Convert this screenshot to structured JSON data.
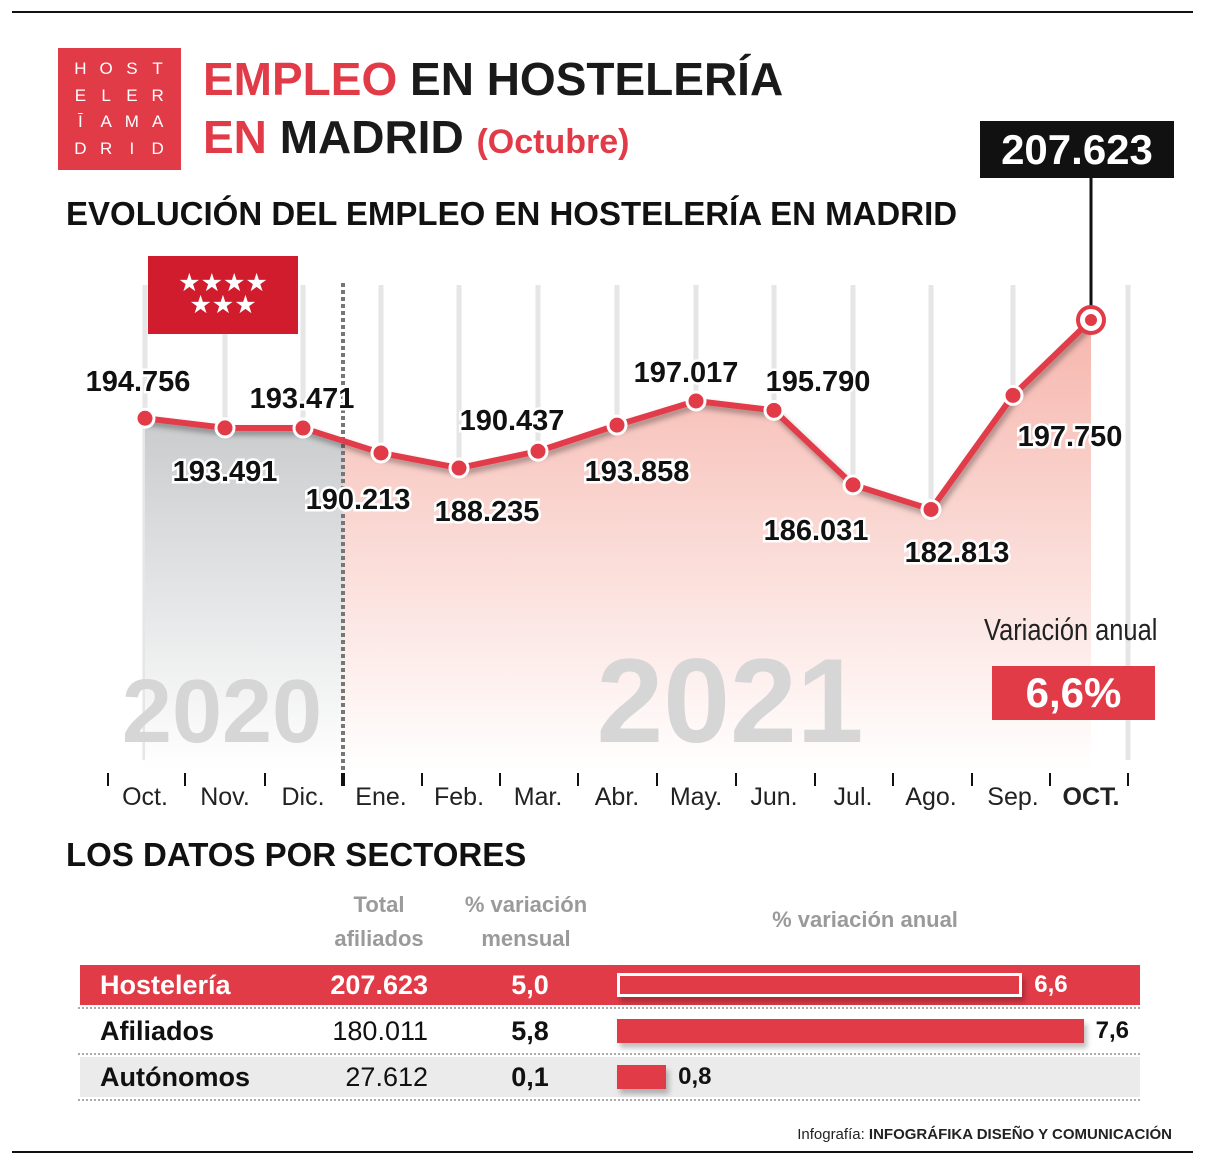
{
  "header": {
    "logo_letters": [
      "H",
      "O",
      "S",
      "T",
      "E",
      "L",
      "E",
      "R",
      "Ī",
      "A",
      "M",
      "A",
      "D",
      "R",
      "I",
      "D"
    ],
    "title_red": "EMPLEO",
    "title_rest": "EN HOSTELERÍA",
    "title_line2_red": "EN",
    "title_line2_rest": "MADRID",
    "title_paren": "(Octubre)"
  },
  "chart_data": {
    "type": "line",
    "title": "EVOLUCIÓN DEL EMPLEO EN HOSTELERÍA EN MADRID",
    "categories": [
      "Oct.",
      "Nov.",
      "Dic.",
      "Ene.",
      "Feb.",
      "Mar.",
      "Abr.",
      "May.",
      "Jun.",
      "Jul.",
      "Ago.",
      "Sep.",
      "OCT."
    ],
    "values": [
      194756,
      193491,
      193471,
      190213,
      188235,
      190437,
      193858,
      197017,
      195790,
      186031,
      182813,
      197750,
      207623
    ],
    "labels": [
      "194.756",
      "193.491",
      "193.471",
      "190.213",
      "188.235",
      "190.437",
      "193.858",
      "197.017",
      "195.790",
      "186.031",
      "182.813",
      "197.750",
      "207.623"
    ],
    "year_labels": [
      "2020",
      "2021"
    ],
    "ylim": [
      150000,
      212000
    ],
    "grid": "vertical",
    "colors": {
      "line": "#e23b48",
      "area_2021": "#f6b6ad",
      "area_2020": "#c9cbcd"
    },
    "highlight": {
      "value": "207.623",
      "label": "Variación anual",
      "change": "6,6%"
    }
  },
  "flag": {
    "stars": "★★★★★★★"
  },
  "sectors": {
    "title": "LOS DATOS POR SECTORES",
    "headers": {
      "total": [
        "Total",
        "afiliados"
      ],
      "monthly": [
        "% variación",
        "mensual"
      ],
      "annual": "% variación anual"
    },
    "rows": [
      {
        "name": "Hostelería",
        "total": "207.623",
        "monthly": "5,0",
        "annual": 6.6,
        "annual_label": "6,6"
      },
      {
        "name": "Afiliados",
        "total": "180.011",
        "monthly": "5,8",
        "annual": 7.6,
        "annual_label": "7,6"
      },
      {
        "name": "Autónomos",
        "total": "27.612",
        "monthly": "0,1",
        "annual": 0.8,
        "annual_label": "0,8"
      }
    ]
  },
  "credit": {
    "prefix": "Infografía:",
    "name": "INFOGRÁFIKA DISEÑO Y COMUNICACIÓN"
  }
}
